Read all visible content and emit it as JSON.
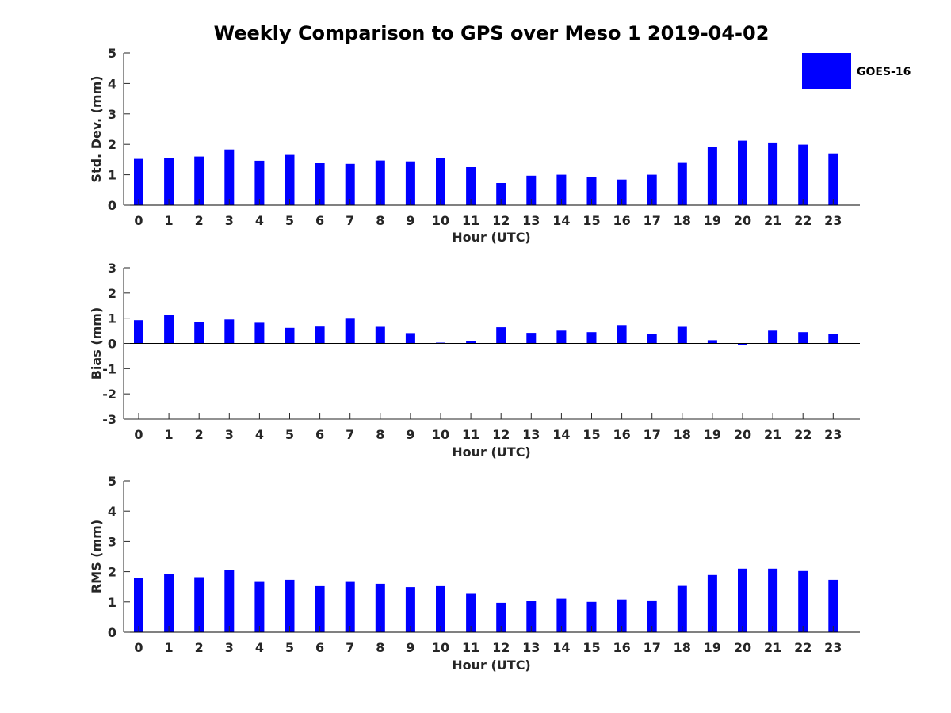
{
  "title": "Weekly Comparison to GPS over Meso 1 2019-04-02",
  "colors": {
    "bar": "#0000ff",
    "axis": "#262626"
  },
  "legend": {
    "label": "GOES-16"
  },
  "chart_data": [
    {
      "type": "bar",
      "title": "Weekly Comparison to GPS over Meso 1 2019-04-02",
      "xlabel": "Hour (UTC)",
      "ylabel": "Std. Dev. (mm)",
      "ylim": [
        0,
        5
      ],
      "yticks": [
        0,
        1,
        2,
        3,
        4,
        5
      ],
      "categories": [
        "0",
        "1",
        "2",
        "3",
        "4",
        "5",
        "6",
        "7",
        "8",
        "9",
        "10",
        "11",
        "12",
        "13",
        "14",
        "15",
        "16",
        "17",
        "18",
        "19",
        "20",
        "21",
        "22",
        "23"
      ],
      "series": [
        {
          "name": "GOES-16",
          "values": [
            1.52,
            1.55,
            1.6,
            1.83,
            1.46,
            1.65,
            1.38,
            1.36,
            1.47,
            1.44,
            1.55,
            1.25,
            0.73,
            0.97,
            1.0,
            0.92,
            0.84,
            1.0,
            1.39,
            1.91,
            2.12,
            2.06,
            1.99,
            1.7
          ]
        }
      ]
    },
    {
      "type": "bar",
      "xlabel": "Hour (UTC)",
      "ylabel": "Bias (mm)",
      "ylim": [
        -3,
        3
      ],
      "yticks": [
        -3,
        -2,
        -1,
        0,
        1,
        2,
        3
      ],
      "categories": [
        "0",
        "1",
        "2",
        "3",
        "4",
        "5",
        "6",
        "7",
        "8",
        "9",
        "10",
        "11",
        "12",
        "13",
        "14",
        "15",
        "16",
        "17",
        "18",
        "19",
        "20",
        "21",
        "22",
        "23"
      ],
      "series": [
        {
          "name": "GOES-16",
          "values": [
            0.92,
            1.13,
            0.85,
            0.95,
            0.82,
            0.62,
            0.67,
            0.98,
            0.66,
            0.41,
            0.03,
            0.1,
            0.64,
            0.42,
            0.51,
            0.45,
            0.73,
            0.38,
            0.66,
            0.13,
            -0.06,
            0.51,
            0.45,
            0.38
          ]
        }
      ]
    },
    {
      "type": "bar",
      "xlabel": "Hour (UTC)",
      "ylabel": "RMS (mm)",
      "ylim": [
        0,
        5
      ],
      "yticks": [
        0,
        1,
        2,
        3,
        4,
        5
      ],
      "categories": [
        "0",
        "1",
        "2",
        "3",
        "4",
        "5",
        "6",
        "7",
        "8",
        "9",
        "10",
        "11",
        "12",
        "13",
        "14",
        "15",
        "16",
        "17",
        "18",
        "19",
        "20",
        "21",
        "22",
        "23"
      ],
      "series": [
        {
          "name": "GOES-16",
          "values": [
            1.78,
            1.92,
            1.82,
            2.05,
            1.66,
            1.73,
            1.52,
            1.66,
            1.6,
            1.49,
            1.52,
            1.27,
            0.97,
            1.03,
            1.11,
            1.0,
            1.08,
            1.05,
            1.53,
            1.89,
            2.1,
            2.1,
            2.02,
            1.73
          ]
        }
      ]
    }
  ]
}
